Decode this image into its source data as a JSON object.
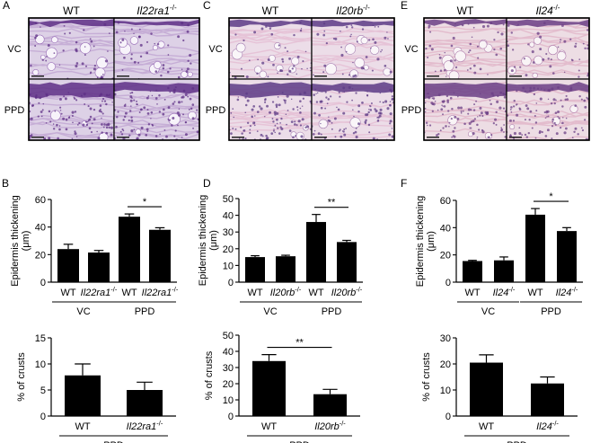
{
  "panels": [
    {
      "letter": "A",
      "genotypes": [
        "WT",
        "Il22ra1-/-"
      ],
      "rows": [
        "VC",
        "PPD"
      ],
      "tissue_colors": {
        "base": "#ddd1e6",
        "dark": "#5e2f86",
        "mid": "#9a6fb8",
        "fiber": "#c6aed6",
        "fat": "#f7f3fa"
      }
    },
    {
      "letter": "C",
      "genotypes": [
        "WT",
        "Il20rb-/-"
      ],
      "rows": [
        "VC",
        "PPD"
      ],
      "tissue_colors": {
        "base": "#ecdde8",
        "dark": "#5d3b86",
        "mid": "#a883b4",
        "fiber": "#e6c3d7",
        "fat": "#faf6f9"
      }
    },
    {
      "letter": "E",
      "genotypes": [
        "WT",
        "Il24-/-"
      ],
      "rows": [
        "VC",
        "PPD"
      ],
      "tissue_colors": {
        "base": "#eddde4",
        "dark": "#6b3f86",
        "mid": "#b07fae",
        "fiber": "#e3bccd",
        "fat": "#f9f4f6"
      }
    }
  ],
  "chart_data": [
    {
      "panel": "B",
      "type": "bar",
      "categories": [
        "WT",
        "Il22ra1-/-",
        "WT",
        "Il22ra1-/-"
      ],
      "groups": [
        "VC",
        "PPD"
      ],
      "values": [
        24,
        21.5,
        47.5,
        38
      ],
      "errors": [
        3.5,
        1.5,
        2,
        1.5
      ],
      "ylabel": "Epidermis thickening (μm)",
      "ylim": [
        0,
        60
      ],
      "yticks": [
        0,
        20,
        40,
        60
      ],
      "significance": [
        {
          "pair": [
            2,
            3
          ],
          "label": "*"
        }
      ]
    },
    {
      "panel": "B",
      "type": "bar",
      "categories": [
        "WT",
        "Il22ra1-/-"
      ],
      "groups": [
        "PPD"
      ],
      "values": [
        7.8,
        5
      ],
      "errors": [
        2.2,
        1.5
      ],
      "ylabel": "% of crusts",
      "ylim": [
        0,
        15
      ],
      "yticks": [
        0,
        5,
        10,
        15
      ],
      "significance": []
    },
    {
      "panel": "D",
      "type": "bar",
      "categories": [
        "WT",
        "Il20rb-/-",
        "WT",
        "Il20rb-/-"
      ],
      "groups": [
        "VC",
        "PPD"
      ],
      "values": [
        15,
        15.5,
        36,
        24
      ],
      "errors": [
        0.8,
        0.6,
        4.5,
        1
      ],
      "ylabel": "Epidermis thickening (μm)",
      "ylim": [
        0,
        50
      ],
      "yticks": [
        0,
        10,
        20,
        30,
        40,
        50
      ],
      "significance": [
        {
          "pair": [
            2,
            3
          ],
          "label": "**"
        }
      ]
    },
    {
      "panel": "D",
      "type": "bar",
      "categories": [
        "WT",
        "Il20rb-/-"
      ],
      "groups": [
        "PPD"
      ],
      "values": [
        34,
        13.5
      ],
      "errors": [
        4,
        3
      ],
      "ylabel": "% of crusts",
      "ylim": [
        0,
        50
      ],
      "yticks": [
        0,
        5,
        10,
        15,
        20,
        25,
        30,
        35,
        40,
        45,
        50
      ],
      "significance": [
        {
          "pair": [
            0,
            1
          ],
          "label": "**"
        }
      ]
    },
    {
      "panel": "F",
      "type": "bar",
      "categories": [
        "WT",
        "Il24-/-",
        "WT",
        "Il24-/-"
      ],
      "groups": [
        "VC",
        "PPD"
      ],
      "values": [
        15.5,
        16,
        49.5,
        37.5
      ],
      "errors": [
        0.5,
        2.5,
        4.5,
        2.5
      ],
      "ylabel": "Epidermis thickening (μm)",
      "ylim": [
        0,
        60
      ],
      "yticks": [
        0,
        20,
        40,
        60
      ],
      "significance": [
        {
          "pair": [
            2,
            3
          ],
          "label": "*"
        }
      ]
    },
    {
      "panel": "F",
      "type": "bar",
      "categories": [
        "WT",
        "Il24-/-"
      ],
      "groups": [
        "PPD"
      ],
      "values": [
        20.5,
        12.5
      ],
      "errors": [
        3,
        2.5
      ],
      "ylabel": "% of crusts",
      "ylim": [
        0,
        30
      ],
      "yticks": [
        0,
        10,
        20,
        30
      ],
      "significance": []
    }
  ]
}
